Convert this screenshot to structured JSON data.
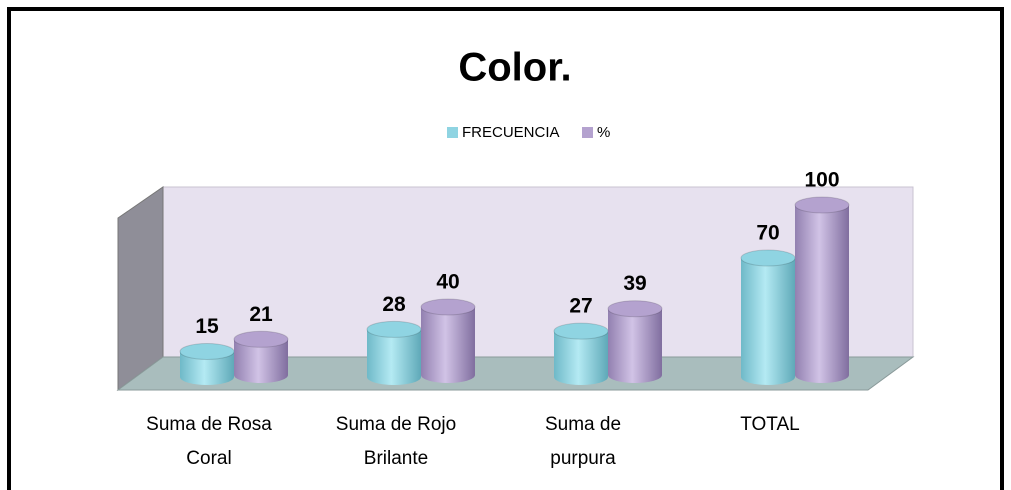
{
  "chart_data": {
    "type": "bar3d",
    "title": "Color.",
    "categories": [
      "Suma de Rosa\nCoral",
      "Suma de Rojo\nBrilante",
      "Suma de\npurpura",
      "TOTAL"
    ],
    "series": [
      {
        "name": "FRECUENCIA",
        "color": "#8fd4e2",
        "values": [
          15,
          28,
          27,
          70
        ]
      },
      {
        "name": "%",
        "color": "#b4a2cf",
        "values": [
          21,
          40,
          39,
          100
        ]
      }
    ],
    "legend": "top"
  }
}
